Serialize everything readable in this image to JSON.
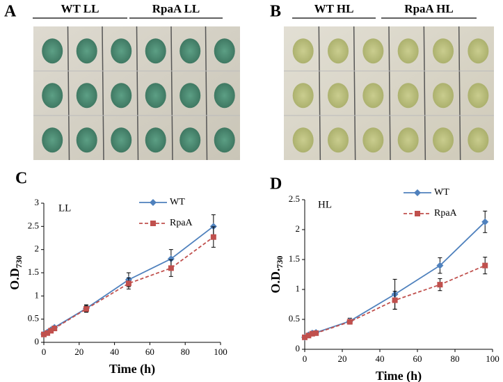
{
  "panels": [
    {
      "label": "A",
      "groups": [
        "WT LL",
        "RpaA LL"
      ]
    },
    {
      "label": "B",
      "groups": [
        "WT HL",
        "RpaA HL"
      ]
    }
  ],
  "chart_data": [
    {
      "type": "line",
      "panel": "C",
      "annotation": "LL",
      "xlabel": "Time (h)",
      "ylabel": "O.D",
      "ylabel_sub": "730",
      "x": [
        0,
        2,
        4,
        6,
        24,
        48,
        72,
        96
      ],
      "series": [
        {
          "name": "WT",
          "color": "#4f81bd",
          "marker": "diamond",
          "line_style": "solid",
          "values": [
            0.18,
            0.22,
            0.27,
            0.32,
            0.73,
            1.35,
            1.8,
            2.5
          ],
          "errors": [
            0.02,
            0.02,
            0.03,
            0.03,
            0.08,
            0.15,
            0.2,
            0.25
          ]
        },
        {
          "name": "RpaA",
          "color": "#c0504d",
          "marker": "square",
          "line_style": "dashed",
          "values": [
            0.17,
            0.2,
            0.25,
            0.3,
            0.72,
            1.27,
            1.6,
            2.27
          ],
          "errors": [
            0.02,
            0.02,
            0.03,
            0.03,
            0.07,
            0.12,
            0.18,
            0.22
          ]
        }
      ],
      "xlim": [
        0,
        100
      ],
      "xticks": [
        0,
        20,
        40,
        60,
        80,
        100
      ],
      "ylim": [
        0,
        3
      ],
      "yticks": [
        0,
        0.5,
        1,
        1.5,
        2,
        2.5,
        3
      ]
    },
    {
      "type": "line",
      "panel": "D",
      "annotation": "HL",
      "xlabel": "Time (h)",
      "ylabel": "O.D.",
      "ylabel_sub": "730",
      "x": [
        0,
        2,
        4,
        6,
        24,
        48,
        72,
        96
      ],
      "series": [
        {
          "name": "WT",
          "color": "#4f81bd",
          "marker": "diamond",
          "line_style": "solid",
          "values": [
            0.2,
            0.24,
            0.27,
            0.28,
            0.47,
            0.92,
            1.4,
            2.13
          ],
          "errors": [
            0.02,
            0.02,
            0.02,
            0.02,
            0.05,
            0.25,
            0.13,
            0.18
          ]
        },
        {
          "name": "RpaA",
          "color": "#c0504d",
          "marker": "square",
          "line_style": "dashed",
          "values": [
            0.2,
            0.23,
            0.26,
            0.27,
            0.46,
            0.82,
            1.08,
            1.4
          ],
          "errors": [
            0.02,
            0.02,
            0.02,
            0.02,
            0.04,
            0.15,
            0.1,
            0.14
          ]
        }
      ],
      "xlim": [
        0,
        100
      ],
      "xticks": [
        0,
        20,
        40,
        60,
        80,
        100
      ],
      "ylim": [
        0,
        2.5
      ],
      "yticks": [
        0,
        0.5,
        1,
        1.5,
        2,
        2.5
      ]
    }
  ]
}
